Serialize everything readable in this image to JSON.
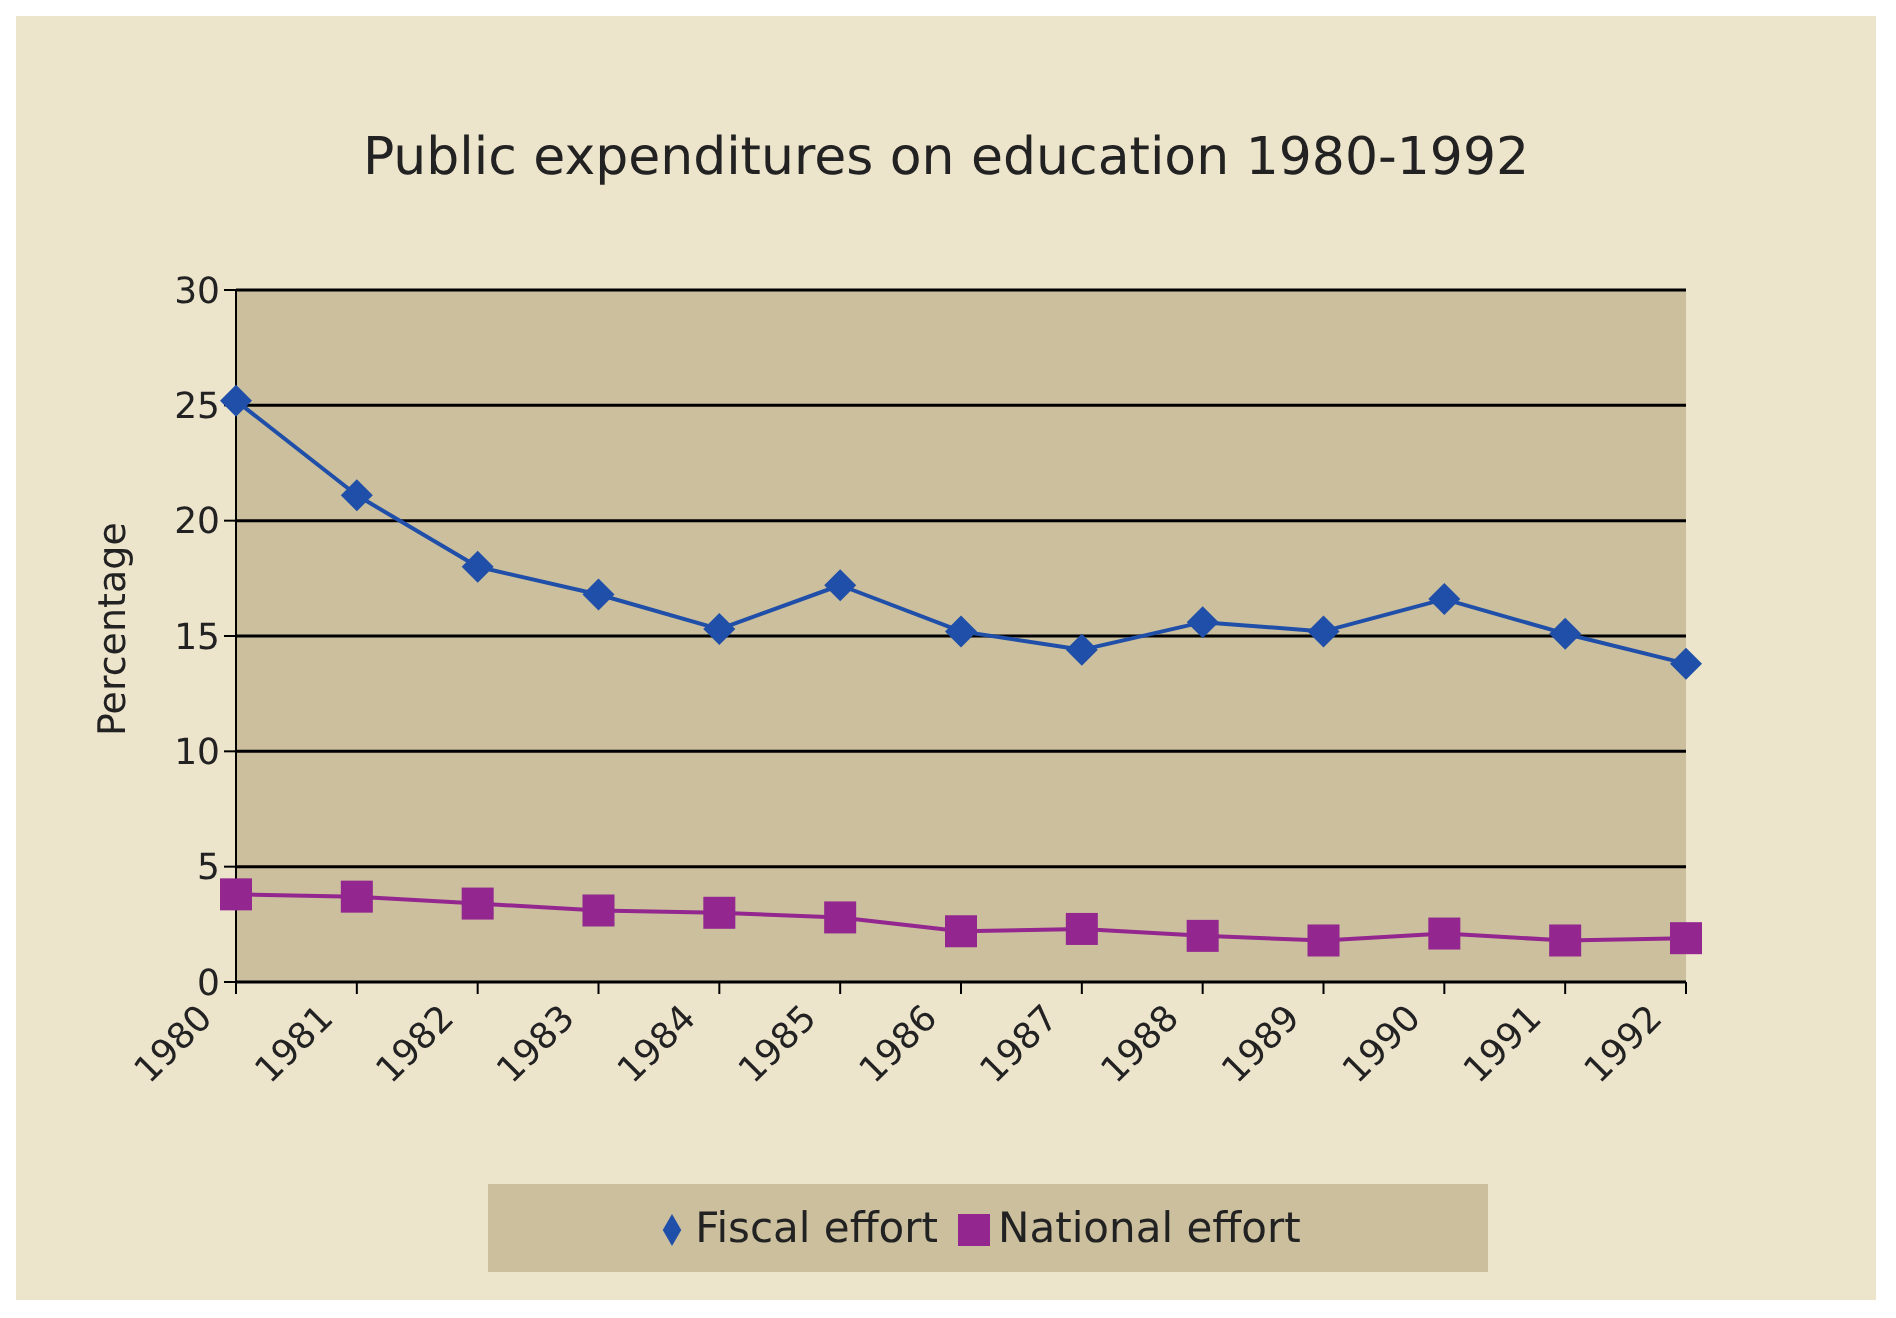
{
  "chart_data": {
    "type": "line",
    "title": "Public expenditures on education 1980-1992",
    "ylabel": "Percentage",
    "categories": [
      "1980",
      "1981",
      "1982",
      "1983",
      "1984",
      "1985",
      "1986",
      "1987",
      "1988",
      "1989",
      "1990",
      "1991",
      "1992"
    ],
    "series": [
      {
        "name": "Fiscal effort",
        "color": "#1f4fa8",
        "marker": "diamond",
        "values": [
          25.2,
          21.1,
          18.0,
          16.8,
          15.3,
          17.2,
          15.2,
          14.4,
          15.6,
          15.2,
          16.6,
          15.1,
          13.8
        ]
      },
      {
        "name": "National effort",
        "color": "#93278f",
        "marker": "square",
        "values": [
          3.8,
          3.7,
          3.4,
          3.1,
          3.0,
          2.8,
          2.2,
          2.3,
          2.0,
          1.8,
          2.1,
          1.8,
          1.9
        ]
      }
    ],
    "ylim": [
      0,
      30
    ],
    "yticks": [
      0,
      5,
      10,
      15,
      20,
      25,
      30
    ],
    "grid": "y",
    "legend": "bottom"
  }
}
